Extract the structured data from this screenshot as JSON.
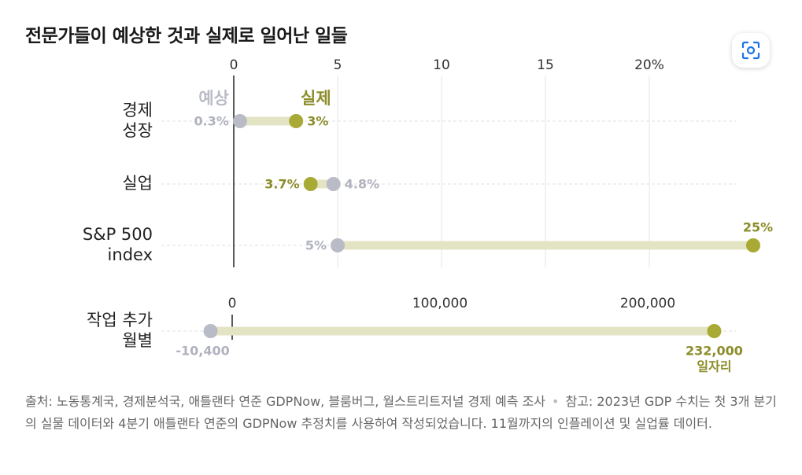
{
  "title": "전문가들이 예상한 것과 실제로 일어난 일들",
  "colors": {
    "expected": "#b9bbc6",
    "actual": "#a9aa35",
    "actual_text": "#8c8d2a",
    "bar": "#e3e4c4",
    "expected_text": "#b0b2be"
  },
  "icon": "lens-scan-icon",
  "chart_data": [
    {
      "type": "dot-range",
      "axis_ticks": [
        "0",
        "5",
        "10",
        "15",
        "20%"
      ],
      "axis_tick_values": [
        0,
        5,
        10,
        15,
        20
      ],
      "xlim": [
        0,
        24
      ],
      "legend": {
        "expected": "예상",
        "actual": "실제"
      },
      "rows": [
        {
          "label": [
            "경제",
            "성장"
          ],
          "expected": 0.3,
          "actual": 3,
          "expected_label": "0.3%",
          "actual_label": "3%"
        },
        {
          "label": [
            "실업"
          ],
          "expected": 4.8,
          "actual": 3.7,
          "expected_label": "4.8%",
          "actual_label": "3.7%"
        },
        {
          "label": [
            "S&P 500",
            "index"
          ],
          "expected": 5,
          "actual": 25,
          "expected_label": "5%",
          "actual_label": "25%"
        }
      ]
    },
    {
      "type": "dot-range",
      "axis_ticks": [
        "0",
        "100,000",
        "200,000"
      ],
      "axis_tick_values": [
        0,
        100000,
        200000
      ],
      "rows": [
        {
          "label": [
            "작업 추가",
            "월별"
          ],
          "expected": -10400,
          "actual": 232000,
          "expected_label": "-10,400",
          "actual_label": [
            "232,000",
            "일자리"
          ]
        }
      ]
    }
  ],
  "source": {
    "text1": "출처: 노동통계국, 경제분석국, 애틀랜타 연준 GDPNow, 블룸버그, 월스트리트저널 경제 예측 조사",
    "text2": "참고: 2023년 GDP 수치는 첫 3개 분기의 실물 데이터와 4분기 애틀랜타 연준의 GDPNow 추정치를 사용하여 작성되었습니다. 11월까지의 인플레이션 및 실업률 데이터."
  }
}
